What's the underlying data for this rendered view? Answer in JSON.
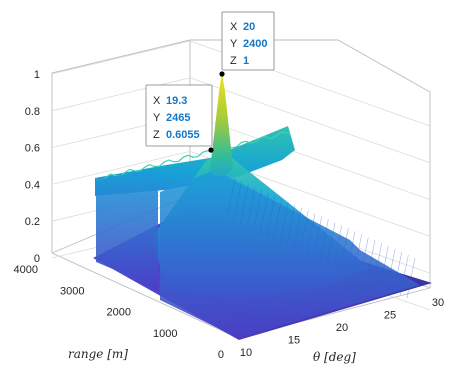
{
  "chart_data": {
    "type": "surface",
    "title": "",
    "xlabel": "θ [deg]",
    "ylabel": "range [m]",
    "zlabel": "",
    "x_ticks": [
      "10",
      "15",
      "20",
      "25",
      "30"
    ],
    "y_ticks": [
      "0",
      "1000",
      "2000",
      "3000",
      "4000"
    ],
    "z_ticks": [
      "0",
      "0.2",
      "0.4",
      "0.6",
      "0.8",
      "1"
    ],
    "xlim": [
      10,
      30
    ],
    "ylim": [
      0,
      4000
    ],
    "zlim": [
      0,
      1
    ],
    "grid": true,
    "colormap": "parula",
    "features": {
      "main_peak": {
        "x": 20,
        "y": 2400,
        "z": 1
      },
      "range_ridge": {
        "x": 20,
        "z": 0.6
      },
      "angle_ridge_level": 0.45
    },
    "datatips": [
      {
        "name": "peak-tip",
        "x_label": "X",
        "x_value": "20",
        "y_label": "Y",
        "y_value": "2400",
        "z_label": "Z",
        "z_value": "1",
        "data": {
          "x": 20,
          "y": 2400,
          "z": 1
        }
      },
      {
        "name": "side-tip",
        "x_label": "X",
        "x_value": "19.3",
        "y_label": "Y",
        "y_value": "2465",
        "z_label": "Z",
        "z_value": "0.6055",
        "data": {
          "x": 19.3,
          "y": 2465,
          "z": 0.6055
        }
      }
    ]
  }
}
